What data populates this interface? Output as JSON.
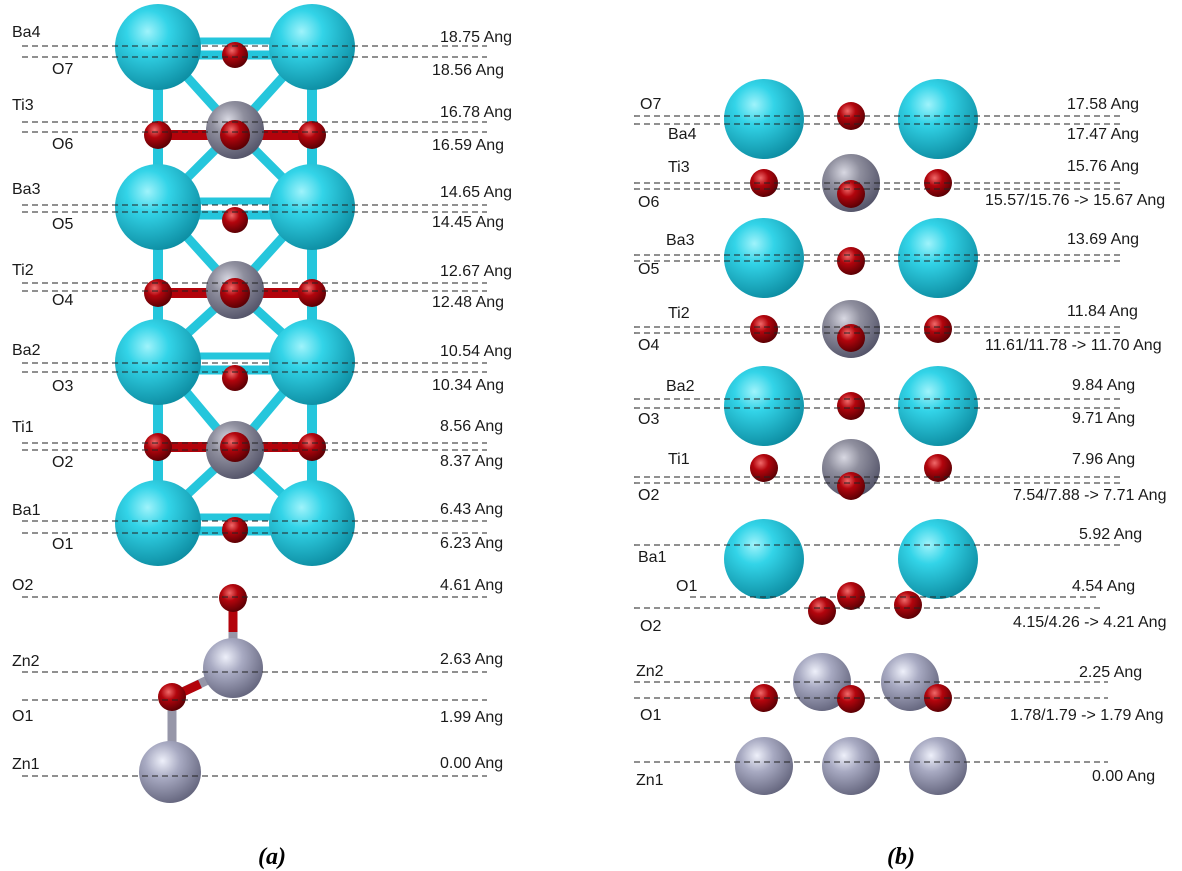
{
  "colors": {
    "Ba": "#25c6dc",
    "Ti": "#8f8f9d",
    "O": "#b3030b",
    "Zn": "#a3a4bd",
    "bond_cyan": "#25c6dc",
    "bond_red": "#b3030b",
    "bond_grey": "#9696a8"
  },
  "panel_a": {
    "caption": "(a)",
    "layers": [
      {
        "name": "Ba4",
        "value": "18.75 Ang"
      },
      {
        "name": "O7",
        "value": "18.56 Ang"
      },
      {
        "name": "Ti3",
        "value": "16.78 Ang"
      },
      {
        "name": "O6",
        "value": "16.59 Ang"
      },
      {
        "name": "Ba3",
        "value": "14.65 Ang"
      },
      {
        "name": "O5",
        "value": "14.45 Ang"
      },
      {
        "name": "Ti2",
        "value": "12.67 Ang"
      },
      {
        "name": "O4",
        "value": "12.48 Ang"
      },
      {
        "name": "Ba2",
        "value": "10.54 Ang"
      },
      {
        "name": "O3",
        "value": "10.34 Ang"
      },
      {
        "name": "Ti1",
        "value": "8.56 Ang"
      },
      {
        "name": "O2",
        "value": "8.37 Ang"
      },
      {
        "name": "Ba1",
        "value": "6.43 Ang"
      },
      {
        "name": "O1",
        "value": "6.23 Ang"
      },
      {
        "name": "O2",
        "value": "4.61 Ang"
      },
      {
        "name": "Zn2",
        "value": "2.63 Ang"
      },
      {
        "name": "O1",
        "value": "1.99 Ang"
      },
      {
        "name": "Zn1",
        "value": "0.00 Ang"
      }
    ]
  },
  "panel_b": {
    "caption": "(b)",
    "layers": [
      {
        "name": "O7",
        "value": "17.58 Ang"
      },
      {
        "name": "Ba4",
        "value": "17.47 Ang"
      },
      {
        "name": "Ti3",
        "value": "15.76 Ang"
      },
      {
        "name": "O6",
        "value": "15.57/15.76 -> 15.67 Ang"
      },
      {
        "name": "Ba3",
        "value": "13.69 Ang"
      },
      {
        "name": "O5",
        "value": ""
      },
      {
        "name": "Ti2",
        "value": "11.84 Ang"
      },
      {
        "name": "O4",
        "value": "11.61/11.78 -> 11.70 Ang"
      },
      {
        "name": "Ba2",
        "value": "9.84 Ang"
      },
      {
        "name": "O3",
        "value": "9.71 Ang"
      },
      {
        "name": "Ti1",
        "value": "7.96 Ang"
      },
      {
        "name": "O2",
        "value": "7.54/7.88 -> 7.71 Ang"
      },
      {
        "name": "Ba1",
        "value": "5.92 Ang"
      },
      {
        "name": "O1",
        "value": "4.54 Ang"
      },
      {
        "name": "O2",
        "value": "4.15/4.26 -> 4.21 Ang"
      },
      {
        "name": "Zn2",
        "value": "2.25 Ang"
      },
      {
        "name": "O1",
        "value": "1.78/1.79 -> 1.79 Ang"
      },
      {
        "name": "Zn1",
        "value": "0.00 Ang"
      }
    ]
  }
}
